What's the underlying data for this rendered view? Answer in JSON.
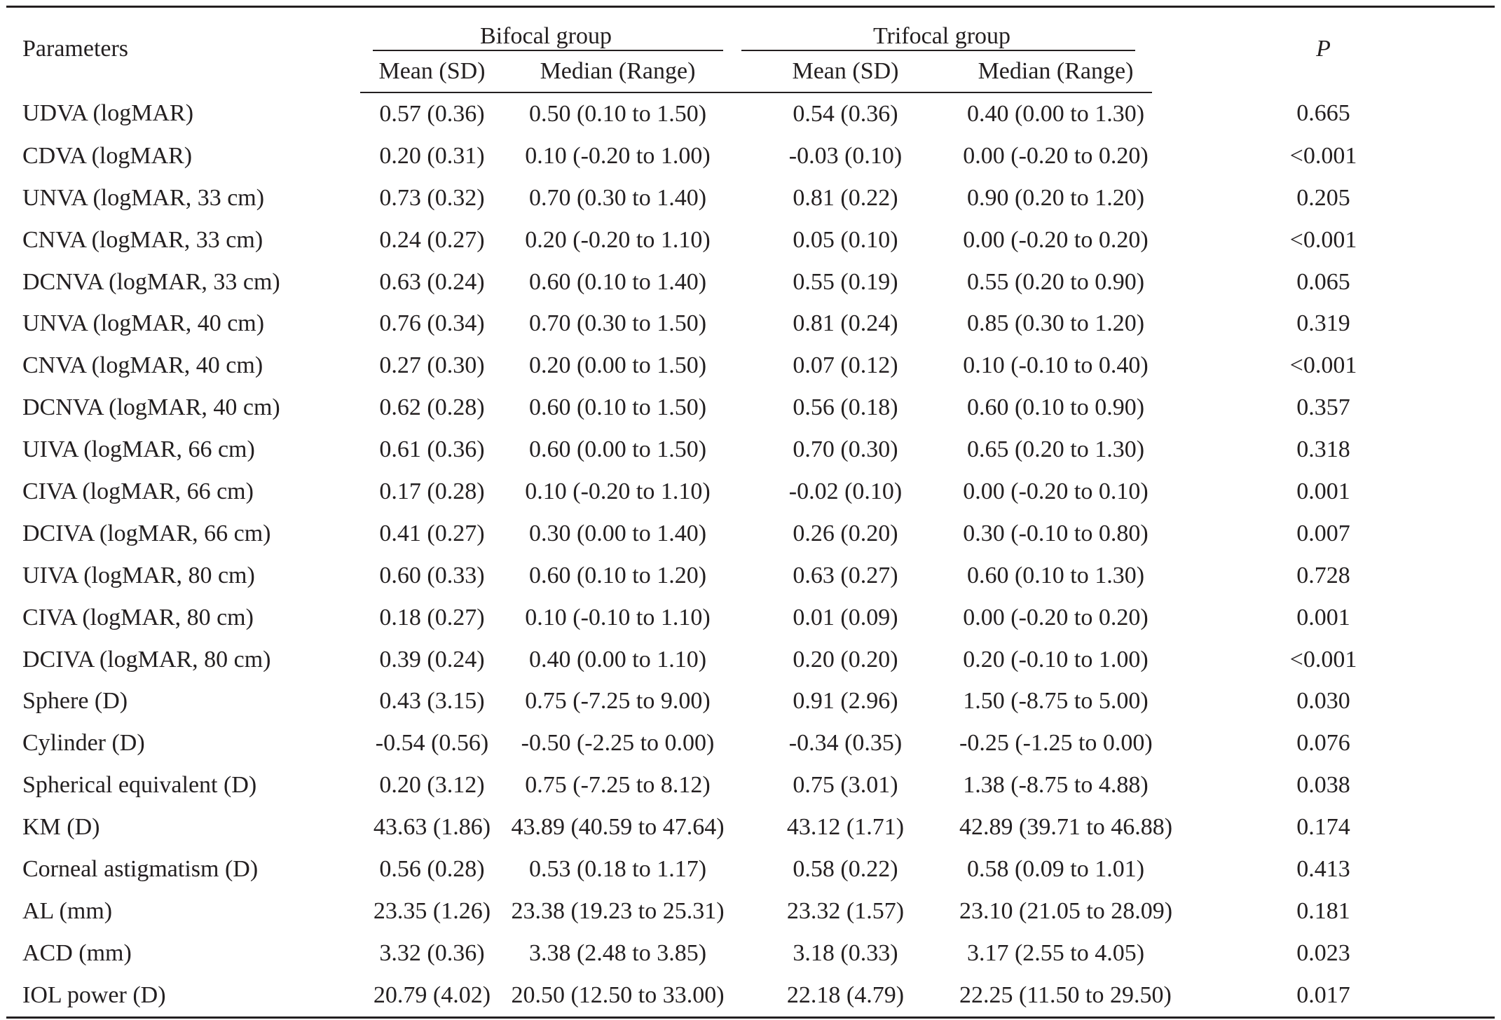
{
  "table": {
    "header": {
      "parameters": "Parameters",
      "bifocal_group": "Bifocal group",
      "trifocal_group": "Trifocal group",
      "p": "P",
      "mean_sd": "Mean (SD)",
      "median_range": "Median (Range)"
    },
    "rows": [
      {
        "param": "UDVA (logMAR)",
        "b_mean": "0.57 (0.36)",
        "b_median": "0.50 (0.10 to 1.50)",
        "t_mean": "0.54 (0.36)",
        "t_median": "0.40 (0.00 to 1.30)",
        "p": "0.665"
      },
      {
        "param": "CDVA (logMAR)",
        "b_mean": "0.20 (0.31)",
        "b_median": "0.10 (-0.20 to 1.00)",
        "t_mean": "-0.03 (0.10)",
        "t_median": "0.00 (-0.20 to 0.20)",
        "p": "<0.001"
      },
      {
        "param": "UNVA (logMAR, 33 cm)",
        "b_mean": "0.73 (0.32)",
        "b_median": "0.70 (0.30 to 1.40)",
        "t_mean": "0.81 (0.22)",
        "t_median": "0.90 (0.20 to 1.20)",
        "p": "0.205"
      },
      {
        "param": "CNVA (logMAR, 33 cm)",
        "b_mean": "0.24 (0.27)",
        "b_median": "0.20 (-0.20 to 1.10)",
        "t_mean": "0.05 (0.10)",
        "t_median": "0.00 (-0.20 to 0.20)",
        "p": "<0.001"
      },
      {
        "param": "DCNVA (logMAR, 33 cm)",
        "b_mean": "0.63 (0.24)",
        "b_median": "0.60 (0.10 to 1.40)",
        "t_mean": "0.55 (0.19)",
        "t_median": "0.55 (0.20 to 0.90)",
        "p": "0.065"
      },
      {
        "param": "UNVA (logMAR, 40 cm)",
        "b_mean": "0.76 (0.34)",
        "b_median": "0.70 (0.30 to 1.50)",
        "t_mean": "0.81 (0.24)",
        "t_median": "0.85 (0.30 to 1.20)",
        "p": "0.319"
      },
      {
        "param": "CNVA (logMAR, 40 cm)",
        "b_mean": "0.27 (0.30)",
        "b_median": "0.20 (0.00 to 1.50)",
        "t_mean": "0.07 (0.12)",
        "t_median": "0.10 (-0.10 to 0.40)",
        "p": "<0.001"
      },
      {
        "param": "DCNVA (logMAR, 40 cm)",
        "b_mean": "0.62 (0.28)",
        "b_median": "0.60 (0.10 to 1.50)",
        "t_mean": "0.56 (0.18)",
        "t_median": "0.60 (0.10 to 0.90)",
        "p": "0.357"
      },
      {
        "param": "UIVA (logMAR, 66 cm)",
        "b_mean": "0.61 (0.36)",
        "b_median": "0.60 (0.00 to 1.50)",
        "t_mean": "0.70 (0.30)",
        "t_median": "0.65 (0.20 to 1.30)",
        "p": "0.318"
      },
      {
        "param": "CIVA (logMAR, 66 cm)",
        "b_mean": "0.17 (0.28)",
        "b_median": "0.10 (-0.20 to 1.10)",
        "t_mean": "-0.02 (0.10)",
        "t_median": "0.00 (-0.20 to 0.10)",
        "p": "0.001"
      },
      {
        "param": "DCIVA (logMAR, 66 cm)",
        "b_mean": "0.41 (0.27)",
        "b_median": "0.30 (0.00 to 1.40)",
        "t_mean": "0.26 (0.20)",
        "t_median": "0.30 (-0.10 to 0.80)",
        "p": "0.007"
      },
      {
        "param": "UIVA (logMAR, 80 cm)",
        "b_mean": "0.60 (0.33)",
        "b_median": "0.60 (0.10 to 1.20)",
        "t_mean": "0.63 (0.27)",
        "t_median": "0.60 (0.10 to 1.30)",
        "p": "0.728"
      },
      {
        "param": "CIVA (logMAR, 80 cm)",
        "b_mean": "0.18 (0.27)",
        "b_median": "0.10 (-0.10 to 1.10)",
        "t_mean": "0.01 (0.09)",
        "t_median": "0.00 (-0.20 to 0.20)",
        "p": "0.001"
      },
      {
        "param": "DCIVA (logMAR, 80 cm)",
        "b_mean": "0.39 (0.24)",
        "b_median": "0.40 (0.00 to 1.10)",
        "t_mean": "0.20 (0.20)",
        "t_median": "0.20 (-0.10 to 1.00)",
        "p": "<0.001"
      },
      {
        "param": "Sphere (D)",
        "b_mean": "0.43 (3.15)",
        "b_median": "0.75 (-7.25 to 9.00)",
        "t_mean": "0.91 (2.96)",
        "t_median": "1.50 (-8.75 to 5.00)",
        "p": "0.030"
      },
      {
        "param": "Cylinder (D)",
        "b_mean": "-0.54 (0.56)",
        "b_median": "-0.50 (-2.25 to 0.00)",
        "t_mean": "-0.34 (0.35)",
        "t_median": "-0.25 (-1.25 to 0.00)",
        "p": "0.076"
      },
      {
        "param": "Spherical equivalent (D)",
        "b_mean": "0.20 (3.12)",
        "b_median": "0.75 (-7.25 to 8.12)",
        "t_mean": "0.75 (3.01)",
        "t_median": "1.38 (-8.75 to 4.88)",
        "p": "0.038"
      },
      {
        "param": "KM (D)",
        "b_mean": "43.63 (1.86)",
        "b_median": "43.89 (40.59 to 47.64)",
        "t_mean": "43.12 (1.71)",
        "t_median": "42.89 (39.71 to 46.88)",
        "p": "0.174"
      },
      {
        "param": "Corneal astigmatism (D)",
        "b_mean": "0.56 (0.28)",
        "b_median": "0.53 (0.18 to 1.17)",
        "t_mean": "0.58 (0.22)",
        "t_median": "0.58 (0.09 to 1.01)",
        "p": "0.413"
      },
      {
        "param": "AL (mm)",
        "b_mean": "23.35 (1.26)",
        "b_median": "23.38 (19.23 to 25.31)",
        "t_mean": "23.32 (1.57)",
        "t_median": "23.10 (21.05 to 28.09)",
        "p": "0.181"
      },
      {
        "param": "ACD (mm)",
        "b_mean": "3.32 (0.36)",
        "b_median": "3.38 (2.48 to 3.85)",
        "t_mean": "3.18 (0.33)",
        "t_median": "3.17 (2.55 to 4.05)",
        "p": "0.023"
      },
      {
        "param": "IOL power (D)",
        "b_mean": "20.79 (4.02)",
        "b_median": "20.50 (12.50 to 33.00)",
        "t_mean": "22.18 (4.79)",
        "t_median": "22.25 (11.50 to 29.50)",
        "p": "0.017"
      }
    ]
  }
}
